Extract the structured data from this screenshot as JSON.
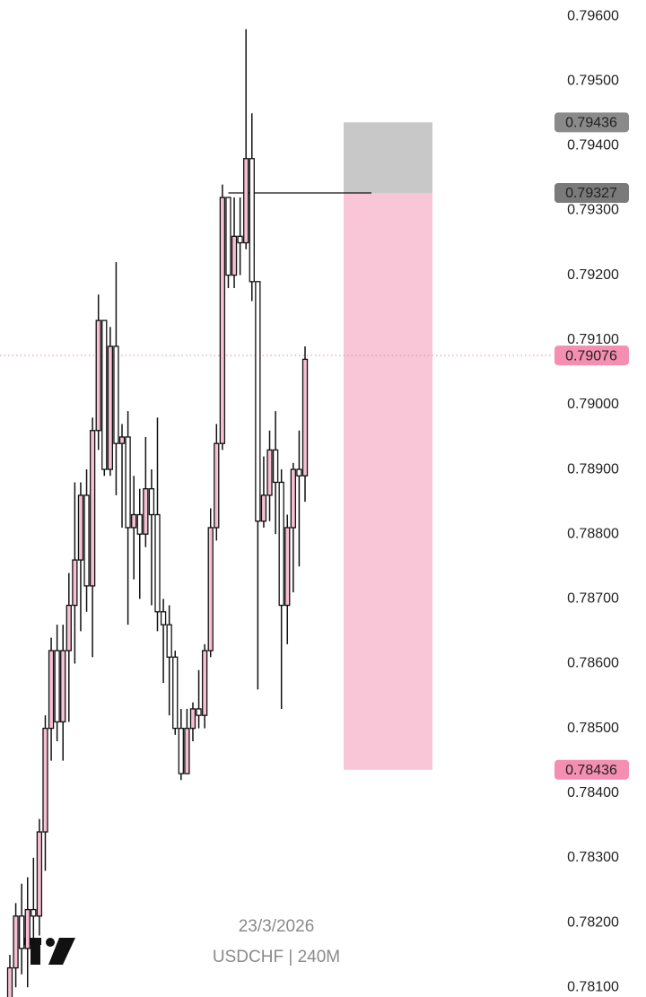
{
  "chart_data": {
    "type": "candlestick",
    "open": [
      0.7808,
      0.7813,
      0.7821,
      0.7816,
      0.7822,
      0.7821,
      0.7834,
      0.785,
      0.7862,
      0.7851,
      0.7862,
      0.7869,
      0.7876,
      0.7886,
      0.7872,
      0.7896,
      0.7913,
      0.789,
      0.7909,
      0.7894,
      0.7895,
      0.7881,
      0.7883,
      0.788,
      0.7887,
      0.7883,
      0.7868,
      0.7866,
      0.7861,
      0.785,
      0.7843,
      0.785,
      0.7853,
      0.7852,
      0.7862,
      0.7881,
      0.7894,
      0.7932,
      0.792,
      0.7926,
      0.7925,
      0.7938,
      0.7919,
      0.7882,
      0.7886,
      0.7893,
      0.7888,
      0.7869,
      0.7881,
      0.789,
      0.7889
    ],
    "high": [
      0.7815,
      0.7823,
      0.7826,
      0.7827,
      0.783,
      0.7836,
      0.7852,
      0.7864,
      0.7866,
      0.7866,
      0.7874,
      0.7888,
      0.7888,
      0.789,
      0.7898,
      0.7917,
      0.7913,
      0.7912,
      0.7922,
      0.7897,
      0.7899,
      0.7889,
      0.7887,
      0.7895,
      0.789,
      0.7898,
      0.787,
      0.7869,
      0.7862,
      0.7853,
      0.7853,
      0.7854,
      0.7859,
      0.7863,
      0.7884,
      0.7897,
      0.7934,
      0.7932,
      0.7932,
      0.7932,
      0.7958,
      0.7945,
      0.7919,
      0.7892,
      0.7896,
      0.7899,
      0.789,
      0.7883,
      0.7891,
      0.7896,
      0.7909
    ],
    "low": [
      0.7804,
      0.781,
      0.7812,
      0.781,
      0.7815,
      0.7818,
      0.7828,
      0.7845,
      0.7848,
      0.7845,
      0.7851,
      0.786,
      0.7865,
      0.7868,
      0.7861,
      0.7893,
      0.7889,
      0.7889,
      0.7886,
      0.7881,
      0.7866,
      0.7873,
      0.787,
      0.7878,
      0.7869,
      0.7865,
      0.7857,
      0.7852,
      0.7849,
      0.7842,
      0.7843,
      0.7848,
      0.785,
      0.785,
      0.7861,
      0.7879,
      0.7893,
      0.7918,
      0.7918,
      0.792,
      0.7924,
      0.7916,
      0.7856,
      0.7881,
      0.7882,
      0.788,
      0.7853,
      0.7863,
      0.7871,
      0.7875,
      0.7885
    ],
    "close": [
      0.7813,
      0.7821,
      0.7816,
      0.7822,
      0.7821,
      0.7834,
      0.785,
      0.7862,
      0.7851,
      0.7862,
      0.7869,
      0.7876,
      0.7886,
      0.7872,
      0.7896,
      0.7913,
      0.789,
      0.7909,
      0.7894,
      0.7895,
      0.7881,
      0.7883,
      0.788,
      0.7887,
      0.7883,
      0.7868,
      0.7866,
      0.7861,
      0.785,
      0.7843,
      0.785,
      0.7853,
      0.7852,
      0.7862,
      0.7881,
      0.7894,
      0.7932,
      0.792,
      0.7926,
      0.7925,
      0.7938,
      0.7919,
      0.7882,
      0.7886,
      0.7893,
      0.7888,
      0.7869,
      0.7881,
      0.789,
      0.7889,
      0.7907
    ],
    "up_color": "#f7bfd3",
    "down_color": "#ffffff",
    "ylim": [
      0.78085,
      0.79625
    ],
    "yticks": [
      {
        "value": 0.796,
        "label": "0.79600"
      },
      {
        "value": 0.795,
        "label": "0.79500"
      },
      {
        "value": 0.794,
        "label": "0.79400"
      },
      {
        "value": 0.793,
        "label": "0.79300"
      },
      {
        "value": 0.792,
        "label": "0.79200"
      },
      {
        "value": 0.791,
        "label": "0.79100"
      },
      {
        "value": 0.79,
        "label": "0.79000"
      },
      {
        "value": 0.789,
        "label": "0.78900"
      },
      {
        "value": 0.788,
        "label": "0.78800"
      },
      {
        "value": 0.787,
        "label": "0.78700"
      },
      {
        "value": 0.786,
        "label": "0.78600"
      },
      {
        "value": 0.785,
        "label": "0.78500"
      },
      {
        "value": 0.784,
        "label": "0.78400"
      },
      {
        "value": 0.783,
        "label": "0.78300"
      },
      {
        "value": 0.782,
        "label": "0.78200"
      },
      {
        "value": 0.781,
        "label": "0.78100"
      }
    ],
    "position": {
      "stop": 0.79436,
      "entry": 0.79327,
      "target": 0.78436,
      "stop_color": "#c8c8c8",
      "target_color": "#f8c6d7"
    },
    "price_labels": [
      {
        "value": 0.79436,
        "color": "#8a8a8a"
      },
      {
        "value": 0.79327,
        "color": "#7a7a7a"
      },
      {
        "value": 0.79076,
        "color": "#f48fb1"
      },
      {
        "value": 0.78436,
        "color": "#f48fb1"
      }
    ],
    "date": "23/3/2026",
    "symbol": "USDCHF | 240M"
  }
}
